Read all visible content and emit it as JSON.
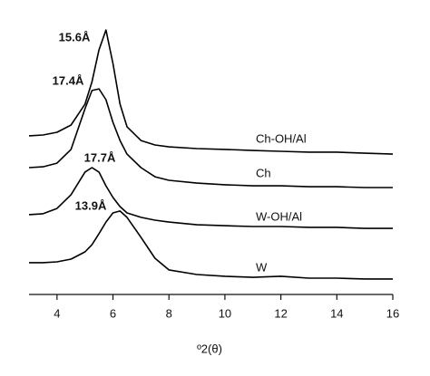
{
  "chart_data": {
    "type": "line",
    "x_label": "º2(θ)",
    "x": [
      3,
      3.5,
      4,
      4.5,
      5,
      5.25,
      5.5,
      5.75,
      6,
      6.25,
      6.5,
      7,
      7.5,
      8,
      9,
      10,
      11,
      12,
      13,
      14,
      15,
      16
    ],
    "series": [
      {
        "name": "Ch-OH/Al",
        "color": "#000000",
        "values": [
          57.4,
          57.7,
          58.7,
          61.3,
          68.9,
          77.0,
          88.5,
          95.7,
          83.6,
          68.9,
          60.7,
          55.7,
          54.1,
          53.4,
          52.8,
          52.5,
          52.1,
          51.8,
          51.5,
          51.5,
          51.1,
          50.8
        ]
      },
      {
        "name": "Ch",
        "color": "#000000",
        "values": [
          45.9,
          46.2,
          47.5,
          52.5,
          67.2,
          73.8,
          74.4,
          70.5,
          62.3,
          55.7,
          50.8,
          45.9,
          42.6,
          41.3,
          40.3,
          39.7,
          39.3,
          39.3,
          39.0,
          39.0,
          38.7,
          38.7
        ]
      },
      {
        "name": "W-OH/Al",
        "color": "#000000",
        "values": [
          28.9,
          29.2,
          31.1,
          36.1,
          44.3,
          45.9,
          44.3,
          39.3,
          35.1,
          31.8,
          29.5,
          27.9,
          26.9,
          26.2,
          25.2,
          24.9,
          24.6,
          24.6,
          24.3,
          24.3,
          23.9,
          23.9
        ]
      },
      {
        "name": "W",
        "color": "#000000",
        "values": [
          11.5,
          11.5,
          11.8,
          12.8,
          15.4,
          18.0,
          22.0,
          26.2,
          29.5,
          30.2,
          27.9,
          20.7,
          13.1,
          8.9,
          7.2,
          6.6,
          6.2,
          6.6,
          5.9,
          5.9,
          5.6,
          5.6
        ]
      }
    ],
    "annotations": [
      "15.6Å",
      "17.4Å",
      "17.7Å",
      "13.9Å"
    ],
    "xlim": [
      3,
      16
    ],
    "xticks": [
      4,
      6,
      8,
      10,
      12,
      14,
      16
    ],
    "ylim": [
      0,
      100
    ]
  }
}
